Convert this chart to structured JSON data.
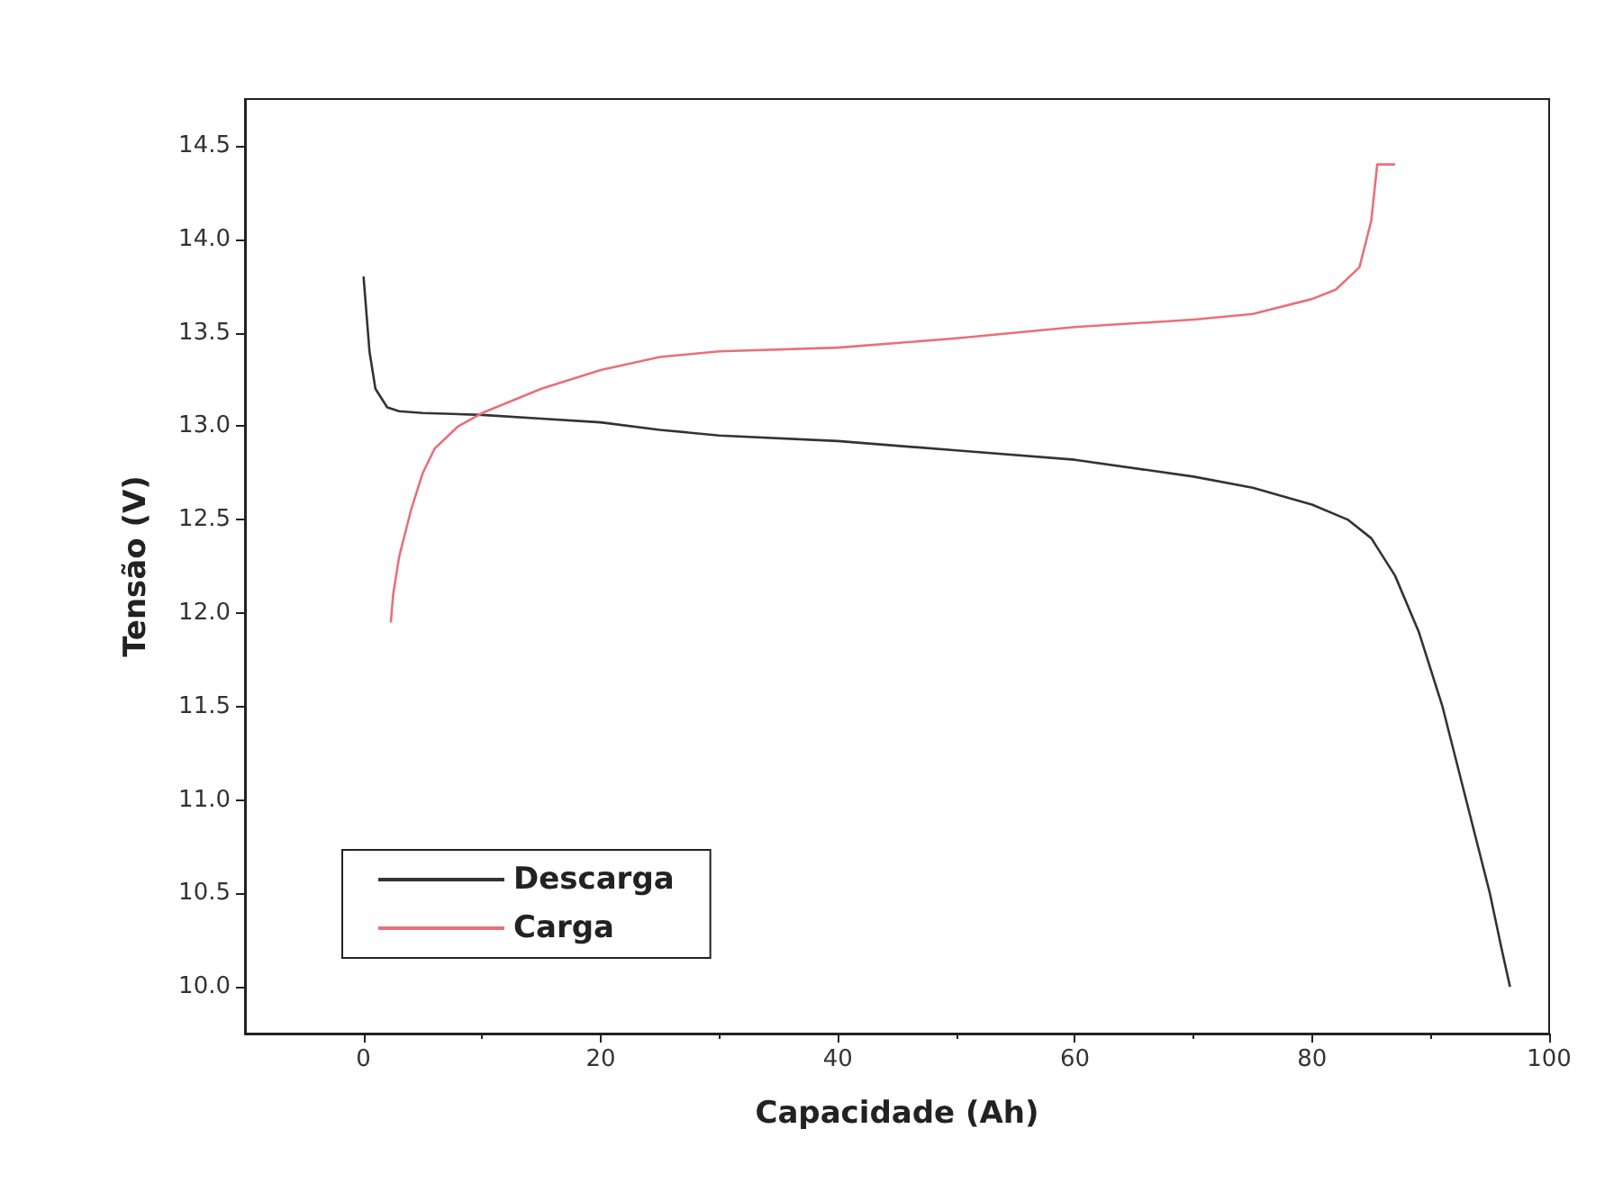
{
  "chart_data": {
    "type": "line",
    "xlabel": "Capacidade (Ah)",
    "ylabel": "Tensão (V)",
    "xlim": [
      -10,
      100
    ],
    "xticks": [
      0,
      20,
      40,
      60,
      80,
      100
    ],
    "ylim": [
      9.75,
      14.75
    ],
    "yticks": [
      {
        "value": 10,
        "label": "10.0"
      },
      {
        "value": 10.5,
        "label": "10.5"
      },
      {
        "value": 11,
        "label": "11.0"
      },
      {
        "value": 11.5,
        "label": "11.5"
      },
      {
        "value": 12,
        "label": "12.0"
      },
      {
        "value": 12.5,
        "label": "12.5"
      },
      {
        "value": 13,
        "label": "13.0"
      },
      {
        "value": 13.5,
        "label": "13.5"
      },
      {
        "value": 14,
        "label": "14.0"
      },
      {
        "value": 14.5,
        "label": "14.5"
      }
    ],
    "grid": false,
    "legend": "bottom left",
    "marker": "none",
    "line_style": "solid",
    "series": [
      {
        "name": "Descarga",
        "color": "#333333",
        "x": [
          0,
          0.5,
          1,
          2,
          3,
          5,
          10,
          15,
          20,
          25,
          30,
          40,
          50,
          60,
          70,
          75,
          80,
          83,
          85,
          87,
          89,
          91,
          93,
          95,
          96,
          96.7
        ],
        "values": [
          13.8,
          13.4,
          13.2,
          13.1,
          13.08,
          13.07,
          13.06,
          13.04,
          13.02,
          12.98,
          12.95,
          12.92,
          12.87,
          12.82,
          12.73,
          12.67,
          12.58,
          12.5,
          12.4,
          12.2,
          11.9,
          11.5,
          11.0,
          10.5,
          10.2,
          10.0
        ]
      },
      {
        "name": "Carga",
        "color": "#e8707a",
        "x": [
          2.3,
          2.5,
          3,
          4,
          5,
          6,
          8,
          10,
          15,
          20,
          25,
          30,
          40,
          50,
          60,
          70,
          75,
          80,
          82,
          84,
          85,
          85.5,
          87
        ],
        "values": [
          11.95,
          12.1,
          12.3,
          12.55,
          12.75,
          12.88,
          13.0,
          13.07,
          13.2,
          13.3,
          13.37,
          13.4,
          13.42,
          13.47,
          13.53,
          13.57,
          13.6,
          13.68,
          13.73,
          13.85,
          14.1,
          14.4,
          14.4
        ]
      }
    ]
  }
}
